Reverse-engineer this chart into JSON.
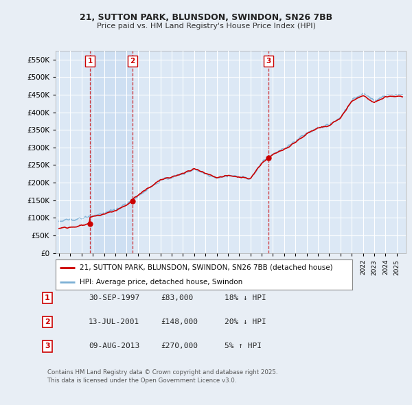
{
  "title1": "21, SUTTON PARK, BLUNSDON, SWINDON, SN26 7BB",
  "title2": "Price paid vs. HM Land Registry's House Price Index (HPI)",
  "background_color": "#e8eef5",
  "plot_bg": "#dce8f5",
  "red_color": "#cc0000",
  "blue_color": "#7bafd4",
  "sale_dates": [
    1997.75,
    2001.54,
    2013.61
  ],
  "sale_prices": [
    83000,
    148000,
    270000
  ],
  "sale_labels": [
    "1",
    "2",
    "3"
  ],
  "legend_line1": "21, SUTTON PARK, BLUNSDON, SWINDON, SN26 7BB (detached house)",
  "legend_line2": "HPI: Average price, detached house, Swindon",
  "table_rows": [
    {
      "num": "1",
      "date": "30-SEP-1997",
      "price": "£83,000",
      "hpi": "18% ↓ HPI"
    },
    {
      "num": "2",
      "date": "13-JUL-2001",
      "price": "£148,000",
      "hpi": "20% ↓ HPI"
    },
    {
      "num": "3",
      "date": "09-AUG-2013",
      "price": "£270,000",
      "hpi": "5% ↑ HPI"
    }
  ],
  "footer": "Contains HM Land Registry data © Crown copyright and database right 2025.\nThis data is licensed under the Open Government Licence v3.0.",
  "ylim": [
    0,
    575000
  ],
  "yticks": [
    0,
    50000,
    100000,
    150000,
    200000,
    250000,
    300000,
    350000,
    400000,
    450000,
    500000,
    550000
  ],
  "xlim_start": 1994.7,
  "xlim_end": 2025.8
}
